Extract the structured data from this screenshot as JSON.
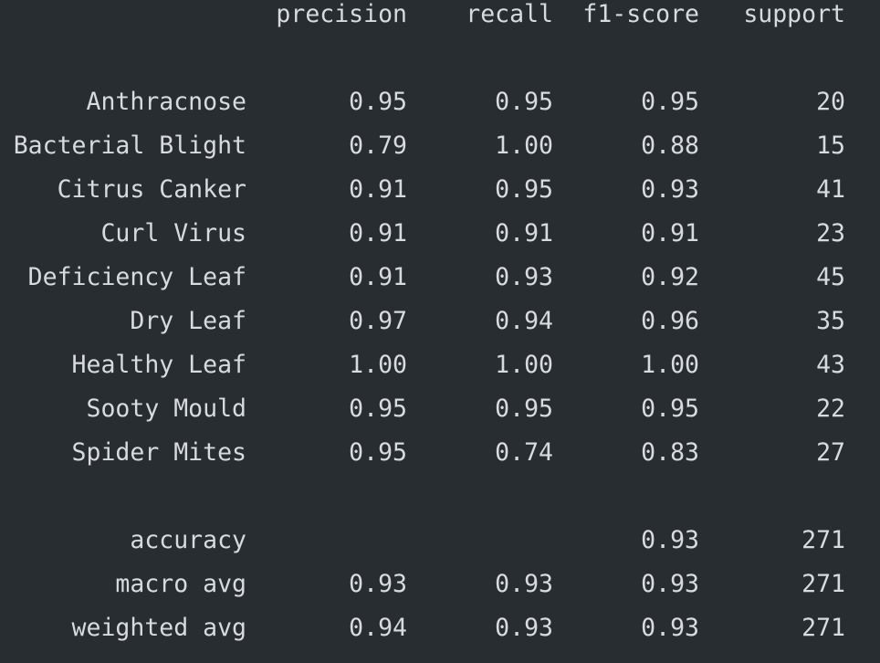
{
  "header": {
    "precision": "precision",
    "recall": "recall",
    "f1_score": "f1-score",
    "support": "support"
  },
  "classes": [
    {
      "label": "Anthracnose",
      "precision": "0.95",
      "recall": "0.95",
      "f1": "0.95",
      "support": "20"
    },
    {
      "label": "Bacterial Blight",
      "precision": "0.79",
      "recall": "1.00",
      "f1": "0.88",
      "support": "15"
    },
    {
      "label": "Citrus Canker",
      "precision": "0.91",
      "recall": "0.95",
      "f1": "0.93",
      "support": "41"
    },
    {
      "label": "Curl Virus",
      "precision": "0.91",
      "recall": "0.91",
      "f1": "0.91",
      "support": "23"
    },
    {
      "label": "Deficiency Leaf",
      "precision": "0.91",
      "recall": "0.93",
      "f1": "0.92",
      "support": "45"
    },
    {
      "label": "Dry Leaf",
      "precision": "0.97",
      "recall": "0.94",
      "f1": "0.96",
      "support": "35"
    },
    {
      "label": "Healthy Leaf",
      "precision": "1.00",
      "recall": "1.00",
      "f1": "1.00",
      "support": "43"
    },
    {
      "label": "Sooty Mould",
      "precision": "0.95",
      "recall": "0.95",
      "f1": "0.95",
      "support": "22"
    },
    {
      "label": "Spider Mites",
      "precision": "0.95",
      "recall": "0.74",
      "f1": "0.83",
      "support": "27"
    }
  ],
  "summary": [
    {
      "label": "accuracy",
      "precision": "",
      "recall": "",
      "f1": "0.93",
      "support": "271"
    },
    {
      "label": "macro avg",
      "precision": "0.93",
      "recall": "0.93",
      "f1": "0.93",
      "support": "271"
    },
    {
      "label": "weighted avg",
      "precision": "0.94",
      "recall": "0.93",
      "f1": "0.93",
      "support": "271"
    }
  ]
}
